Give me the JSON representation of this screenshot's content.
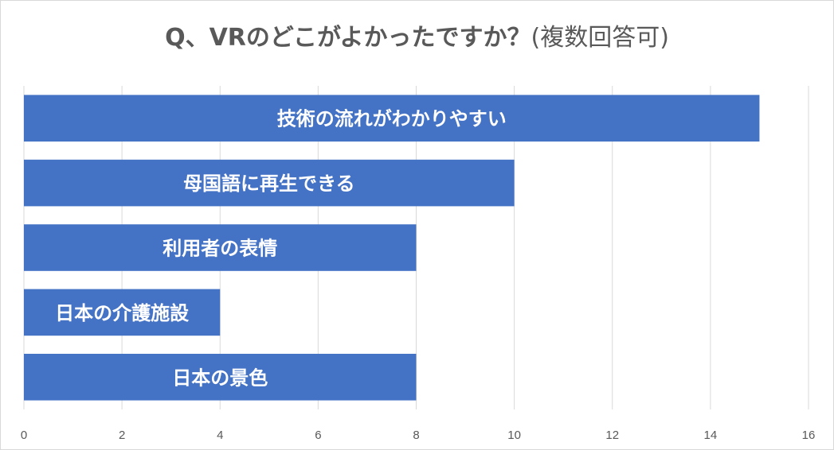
{
  "chart_data": {
    "type": "bar",
    "orientation": "horizontal",
    "title": "Q、VRのどこがよかったですか？",
    "title_suffix": "(複数回答可)",
    "categories": [
      "技術の流れがわかりやすい",
      "母国語に再生できる",
      "利用者の表情",
      "日本の介護施設",
      "日本の景色"
    ],
    "values": [
      15,
      10,
      8,
      4,
      8
    ],
    "xlim": [
      0,
      16
    ],
    "xticks": [
      0,
      2,
      4,
      6,
      8,
      10,
      12,
      14,
      16
    ],
    "xlabel": "",
    "ylabel": "",
    "grid": true,
    "legend": "none",
    "bar_color": "#4472c4",
    "label_color": "#ffffff"
  }
}
